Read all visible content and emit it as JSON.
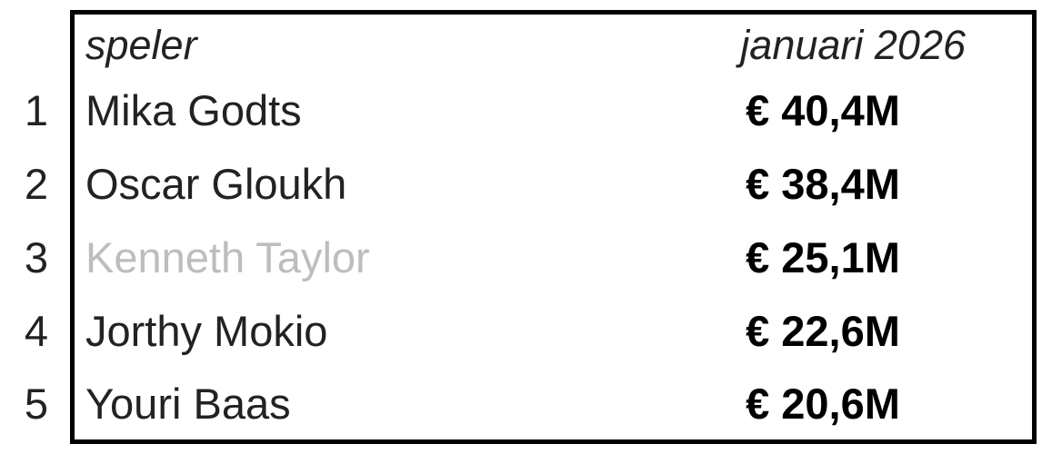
{
  "header": {
    "player_label": "speler",
    "date_label": "januari 2026"
  },
  "rows": [
    {
      "rank": "1",
      "name": "Mika Godts",
      "value": "€ 40,4M",
      "dimmed": false
    },
    {
      "rank": "2",
      "name": "Oscar Gloukh",
      "value": "€ 38,4M",
      "dimmed": false
    },
    {
      "rank": "3",
      "name": "Kenneth Taylor",
      "value": "€ 25,1M",
      "dimmed": true
    },
    {
      "rank": "4",
      "name": "Jorthy Mokio",
      "value": "€ 22,6M",
      "dimmed": false
    },
    {
      "rank": "5",
      "name": "Youri Baas",
      "value": "€ 20,6M",
      "dimmed": false
    }
  ],
  "colors": {
    "text": "#222222",
    "dimmed": "#bdbdbd",
    "border": "#000000"
  }
}
